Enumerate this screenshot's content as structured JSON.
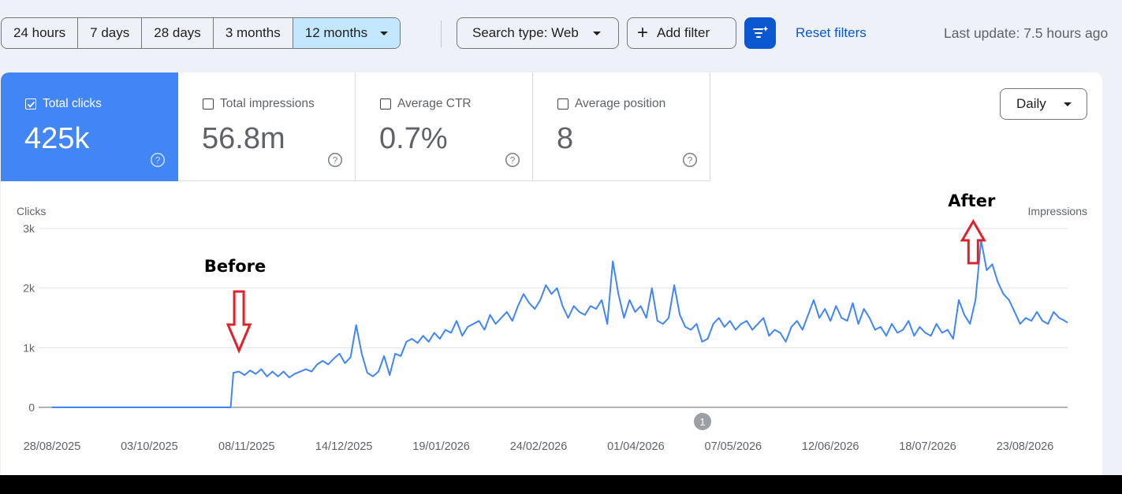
{
  "toolbar": {
    "ranges": [
      {
        "label": "24 hours",
        "active": false
      },
      {
        "label": "7 days",
        "active": false
      },
      {
        "label": "28 days",
        "active": false
      },
      {
        "label": "3 months",
        "active": false
      },
      {
        "label": "12 months",
        "active": true
      }
    ],
    "search_type": "Search type: Web",
    "add_filter": "Add filter",
    "reset_filters": "Reset filters",
    "last_update": "Last update: 7.5 hours ago"
  },
  "metrics": [
    {
      "label": "Total clicks",
      "value": "425k",
      "checked": true
    },
    {
      "label": "Total impressions",
      "value": "56.8m",
      "checked": false
    },
    {
      "label": "Average CTR",
      "value": "0.7%",
      "checked": false
    },
    {
      "label": "Average position",
      "value": "8",
      "checked": false
    }
  ],
  "granularity": "Daily",
  "colors": {
    "accent": "#4285f4",
    "primary_button": "#0b57d0",
    "active_range": "#c2e7ff",
    "annotation_arrow": "#e0202a"
  },
  "annotations": [
    {
      "label": "Before",
      "x_date": "2025-11-03"
    },
    {
      "label": "After",
      "x_date": "2026-07-27"
    }
  ],
  "annotation_marker": "1",
  "chart_data": {
    "type": "line",
    "left_axis_label": "Clicks",
    "right_axis_label": "Impressions",
    "y_ticks": [
      "0",
      "1k",
      "2k",
      "3k"
    ],
    "ylim": [
      0,
      3000
    ],
    "x_tick_labels": [
      "28/08/2025",
      "03/10/2025",
      "08/11/2025",
      "14/12/2025",
      "19/01/2026",
      "24/02/2026",
      "01/04/2026",
      "07/05/2026",
      "12/06/2026",
      "18/07/2026",
      "23/08/2026"
    ],
    "x_start": "2025-08-28",
    "x_end": "2026-08-27",
    "grid": true,
    "series": [
      {
        "color": "#4285f4",
        "points": [
          [
            "2025-08-28",
            0
          ],
          [
            "2025-10-01",
            0
          ],
          [
            "2025-10-31",
            0
          ],
          [
            "2025-11-01",
            580
          ],
          [
            "2025-11-03",
            600
          ],
          [
            "2025-11-05",
            540
          ],
          [
            "2025-11-07",
            620
          ],
          [
            "2025-11-09",
            560
          ],
          [
            "2025-11-11",
            640
          ],
          [
            "2025-11-13",
            520
          ],
          [
            "2025-11-15",
            600
          ],
          [
            "2025-11-17",
            520
          ],
          [
            "2025-11-19",
            600
          ],
          [
            "2025-11-21",
            500
          ],
          [
            "2025-11-23",
            560
          ],
          [
            "2025-11-25",
            600
          ],
          [
            "2025-11-27",
            640
          ],
          [
            "2025-11-29",
            600
          ],
          [
            "2025-12-01",
            720
          ],
          [
            "2025-12-03",
            780
          ],
          [
            "2025-12-05",
            720
          ],
          [
            "2025-12-07",
            820
          ],
          [
            "2025-12-09",
            900
          ],
          [
            "2025-12-11",
            740
          ],
          [
            "2025-12-13",
            840
          ],
          [
            "2025-12-15",
            1380
          ],
          [
            "2025-12-17",
            900
          ],
          [
            "2025-12-19",
            580
          ],
          [
            "2025-12-21",
            520
          ],
          [
            "2025-12-23",
            600
          ],
          [
            "2025-12-25",
            860
          ],
          [
            "2025-12-27",
            540
          ],
          [
            "2025-12-29",
            900
          ],
          [
            "2025-12-31",
            860
          ],
          [
            "2026-01-02",
            1100
          ],
          [
            "2026-01-04",
            1150
          ],
          [
            "2026-01-06",
            1080
          ],
          [
            "2026-01-08",
            1200
          ],
          [
            "2026-01-10",
            1100
          ],
          [
            "2026-01-12",
            1250
          ],
          [
            "2026-01-14",
            1150
          ],
          [
            "2026-01-16",
            1300
          ],
          [
            "2026-01-18",
            1250
          ],
          [
            "2026-01-20",
            1450
          ],
          [
            "2026-01-22",
            1200
          ],
          [
            "2026-01-24",
            1350
          ],
          [
            "2026-01-26",
            1400
          ],
          [
            "2026-01-28",
            1450
          ],
          [
            "2026-01-30",
            1300
          ],
          [
            "2026-02-01",
            1550
          ],
          [
            "2026-02-03",
            1400
          ],
          [
            "2026-02-05",
            1500
          ],
          [
            "2026-02-07",
            1600
          ],
          [
            "2026-02-09",
            1450
          ],
          [
            "2026-02-11",
            1700
          ],
          [
            "2026-02-13",
            1900
          ],
          [
            "2026-02-15",
            1750
          ],
          [
            "2026-02-17",
            1650
          ],
          [
            "2026-02-19",
            1800
          ],
          [
            "2026-02-21",
            2050
          ],
          [
            "2026-02-23",
            1900
          ],
          [
            "2026-02-25",
            2000
          ],
          [
            "2026-02-27",
            1700
          ],
          [
            "2026-03-01",
            1500
          ],
          [
            "2026-03-03",
            1700
          ],
          [
            "2026-03-05",
            1600
          ],
          [
            "2026-03-07",
            1550
          ],
          [
            "2026-03-09",
            1700
          ],
          [
            "2026-03-11",
            1650
          ],
          [
            "2026-03-13",
            1800
          ],
          [
            "2026-03-15",
            1400
          ],
          [
            "2026-03-17",
            2450
          ],
          [
            "2026-03-19",
            1900
          ],
          [
            "2026-03-21",
            1500
          ],
          [
            "2026-03-23",
            1800
          ],
          [
            "2026-03-25",
            1600
          ],
          [
            "2026-03-27",
            1700
          ],
          [
            "2026-03-29",
            1500
          ],
          [
            "2026-03-31",
            2000
          ],
          [
            "2026-04-02",
            1450
          ],
          [
            "2026-04-04",
            1400
          ],
          [
            "2026-04-06",
            1500
          ],
          [
            "2026-04-08",
            2050
          ],
          [
            "2026-04-10",
            1550
          ],
          [
            "2026-04-12",
            1350
          ],
          [
            "2026-04-14",
            1300
          ],
          [
            "2026-04-16",
            1400
          ],
          [
            "2026-04-18",
            1100
          ],
          [
            "2026-04-20",
            1150
          ],
          [
            "2026-04-22",
            1400
          ],
          [
            "2026-04-24",
            1500
          ],
          [
            "2026-04-26",
            1350
          ],
          [
            "2026-04-28",
            1450
          ],
          [
            "2026-04-30",
            1300
          ],
          [
            "2026-05-02",
            1400
          ],
          [
            "2026-05-04",
            1450
          ],
          [
            "2026-05-06",
            1300
          ],
          [
            "2026-05-08",
            1400
          ],
          [
            "2026-05-10",
            1500
          ],
          [
            "2026-05-12",
            1200
          ],
          [
            "2026-05-14",
            1300
          ],
          [
            "2026-05-16",
            1250
          ],
          [
            "2026-05-18",
            1100
          ],
          [
            "2026-05-20",
            1350
          ],
          [
            "2026-05-22",
            1450
          ],
          [
            "2026-05-24",
            1300
          ],
          [
            "2026-05-26",
            1550
          ],
          [
            "2026-05-28",
            1800
          ],
          [
            "2026-05-30",
            1500
          ],
          [
            "2026-06-01",
            1650
          ],
          [
            "2026-06-03",
            1450
          ],
          [
            "2026-06-05",
            1700
          ],
          [
            "2026-06-07",
            1500
          ],
          [
            "2026-06-09",
            1450
          ],
          [
            "2026-06-11",
            1750
          ],
          [
            "2026-06-13",
            1400
          ],
          [
            "2026-06-15",
            1650
          ],
          [
            "2026-06-17",
            1500
          ],
          [
            "2026-06-19",
            1300
          ],
          [
            "2026-06-21",
            1350
          ],
          [
            "2026-06-23",
            1200
          ],
          [
            "2026-06-25",
            1400
          ],
          [
            "2026-06-27",
            1250
          ],
          [
            "2026-06-29",
            1300
          ],
          [
            "2026-07-01",
            1450
          ],
          [
            "2026-07-03",
            1200
          ],
          [
            "2026-07-05",
            1350
          ],
          [
            "2026-07-07",
            1250
          ],
          [
            "2026-07-09",
            1200
          ],
          [
            "2026-07-11",
            1400
          ],
          [
            "2026-07-13",
            1250
          ],
          [
            "2026-07-15",
            1300
          ],
          [
            "2026-07-17",
            1150
          ],
          [
            "2026-07-19",
            1800
          ],
          [
            "2026-07-21",
            1550
          ],
          [
            "2026-07-23",
            1400
          ],
          [
            "2026-07-25",
            1800
          ],
          [
            "2026-07-27",
            2800
          ],
          [
            "2026-07-29",
            2300
          ],
          [
            "2026-07-31",
            2400
          ],
          [
            "2026-08-02",
            2100
          ],
          [
            "2026-08-04",
            1900
          ],
          [
            "2026-08-06",
            1800
          ],
          [
            "2026-08-08",
            1600
          ],
          [
            "2026-08-10",
            1400
          ],
          [
            "2026-08-12",
            1500
          ],
          [
            "2026-08-14",
            1450
          ],
          [
            "2026-08-16",
            1600
          ],
          [
            "2026-08-18",
            1450
          ],
          [
            "2026-08-20",
            1400
          ],
          [
            "2026-08-22",
            1600
          ],
          [
            "2026-08-24",
            1500
          ],
          [
            "2026-08-26",
            1450
          ],
          [
            "2026-08-27",
            1420
          ]
        ]
      }
    ]
  }
}
